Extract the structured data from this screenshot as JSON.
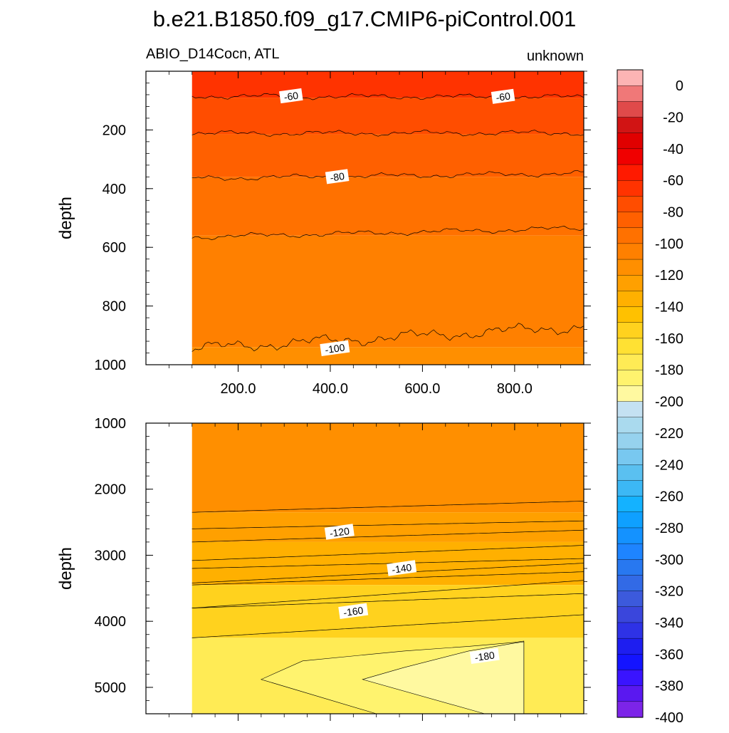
{
  "figure": {
    "title": "b.e21.B1850.f09_g17.CMIP6-piControl.001",
    "left_subtitle": "ABIO_D14Cocn, ATL",
    "right_subtitle": "unknown"
  },
  "colorbar": {
    "labels": [
      "0",
      "-20",
      "-40",
      "-60",
      "-80",
      "-100",
      "-120",
      "-140",
      "-160",
      "-180",
      "-200",
      "-220",
      "-240",
      "-260",
      "-280",
      "-300",
      "-320",
      "-340",
      "-360",
      "-380",
      "-400"
    ],
    "colors": [
      "#fcb4b4",
      "#f07878",
      "#e04a4a",
      "#d11414",
      "#e00000",
      "#f00000",
      "#ff1a00",
      "#ff3300",
      "#ff4d00",
      "#ff6000",
      "#ff7100",
      "#ff8000",
      "#ff8f00",
      "#ffa000",
      "#ffb000",
      "#ffc100",
      "#ffd21e",
      "#ffe133",
      "#ffeb55",
      "#fff36e",
      "#fff9a0",
      "#c4e1f2",
      "#aadaee",
      "#96d2ee",
      "#78c8f0",
      "#5ac0f0",
      "#3cb8f5",
      "#14b2ff",
      "#0fa0ff",
      "#1492ff",
      "#1e84ff",
      "#2878f0",
      "#326ae6",
      "#3c5adc",
      "#3a46dc",
      "#2e32e6",
      "#1e1ef0",
      "#1414ff",
      "#3a14ff",
      "#5a18f0",
      "#7c24e8"
    ]
  },
  "chart_data": [
    {
      "type": "heatmap",
      "panel": "upper",
      "xlabel": "",
      "ylabel": "depth",
      "xlim": [
        0,
        950
      ],
      "ylim": [
        1000,
        0
      ],
      "x_ticks": [
        "200.0",
        "400.0",
        "600.0",
        "800.0"
      ],
      "y_ticks": [
        "200",
        "400",
        "600",
        "800",
        "1000"
      ],
      "data_x_start": 100,
      "bands": [
        {
          "from_depth": 0,
          "to_depth": 90,
          "value": -55
        },
        {
          "from_depth": 90,
          "to_depth": 215,
          "value": -65
        },
        {
          "from_depth": 215,
          "to_depth": 360,
          "value": -75
        },
        {
          "from_depth": 360,
          "to_depth": 560,
          "value": -85
        },
        {
          "from_depth": 560,
          "to_depth": 940,
          "value": -95
        },
        {
          "from_depth": 940,
          "to_depth": 1000,
          "value": -105
        }
      ],
      "contours": [
        {
          "level": -60,
          "depth_left": 85,
          "depth_right": 88
        },
        {
          "level": -70,
          "depth_left": 212,
          "depth_right": 210
        },
        {
          "level": -80,
          "depth_left": 365,
          "depth_right": 348
        },
        {
          "level": -90,
          "depth_left": 565,
          "depth_right": 535
        },
        {
          "level": -100,
          "depth_left": 945,
          "depth_right": 870
        }
      ],
      "contour_labels": [
        {
          "text": "-60",
          "x": 315,
          "depth": 85
        },
        {
          "text": "-60",
          "x": 775,
          "depth": 87
        },
        {
          "text": "-80",
          "x": 415,
          "depth": 360
        },
        {
          "text": "-100",
          "x": 410,
          "depth": 945
        }
      ]
    },
    {
      "type": "heatmap",
      "panel": "lower",
      "xlabel": "",
      "ylabel": "depth",
      "xlim": [
        0,
        950
      ],
      "ylim": [
        5400,
        1000
      ],
      "y_ticks": [
        "1000",
        "2000",
        "3000",
        "4000",
        "5000"
      ],
      "data_x_start": 100,
      "bands": [
        {
          "from_depth": 1000,
          "to_depth": 2350,
          "value": -105
        },
        {
          "from_depth": 2350,
          "to_depth": 2800,
          "value": -115
        },
        {
          "from_depth": 2800,
          "to_depth": 3450,
          "value": -125
        },
        {
          "from_depth": 3450,
          "to_depth": 4250,
          "value": -145
        },
        {
          "from_depth": 4250,
          "to_depth": 5400,
          "value": -165
        }
      ],
      "contours": [
        {
          "level": -110,
          "depth_left": 2350,
          "depth_right": 2180
        },
        {
          "level": -115,
          "depth_left": 2600,
          "depth_right": 2480
        },
        {
          "level": -120,
          "depth_left": 2800,
          "depth_right": 2620
        },
        {
          "level": -125,
          "depth_left": 3080,
          "depth_right": 2850
        },
        {
          "level": -130,
          "depth_left": 3200,
          "depth_right": 3050
        },
        {
          "level": -135,
          "depth_left": 3420,
          "depth_right": 3120
        },
        {
          "level": -140,
          "depth_left": 3450,
          "depth_right": 3250
        },
        {
          "level": -145,
          "depth_left": 3800,
          "depth_right": 3380
        },
        {
          "level": -150,
          "depth_left": 3800,
          "depth_right": 3580
        },
        {
          "level": -160,
          "depth_left": 4250,
          "depth_right": 3900
        }
      ],
      "contour_labels": [
        {
          "text": "-120",
          "x": 420,
          "depth": 2650
        },
        {
          "text": "-140",
          "x": 555,
          "depth": 3200
        },
        {
          "text": "-160",
          "x": 450,
          "depth": 3850
        },
        {
          "text": "-180",
          "x": 735,
          "depth": 4530
        }
      ]
    }
  ]
}
